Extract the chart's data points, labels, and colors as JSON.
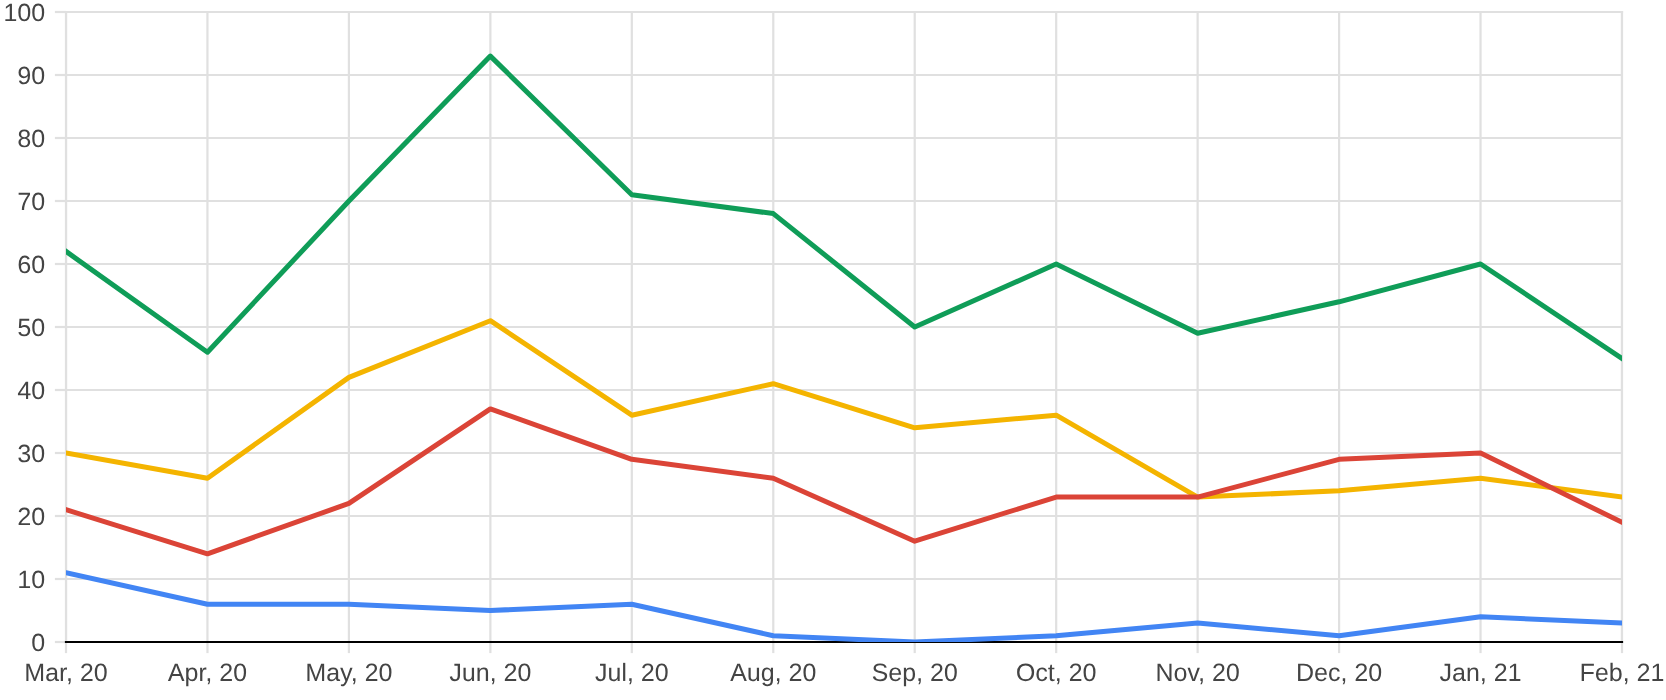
{
  "chart_data": {
    "type": "line",
    "categories": [
      "Mar, 20",
      "Apr, 20",
      "May, 20",
      "Jun, 20",
      "Jul, 20",
      "Aug, 20",
      "Sep, 20",
      "Oct, 20",
      "Nov, 20",
      "Dec, 20",
      "Jan, 21",
      "Feb, 21"
    ],
    "series": [
      {
        "color": "#0f9d58",
        "values": [
          62,
          46,
          70,
          93,
          71,
          68,
          50,
          60,
          49,
          54,
          60,
          45
        ]
      },
      {
        "color": "#f4b400",
        "values": [
          30,
          26,
          42,
          51,
          36,
          41,
          34,
          36,
          23,
          24,
          26,
          23
        ]
      },
      {
        "color": "#db4437",
        "values": [
          21,
          14,
          22,
          37,
          29,
          26,
          16,
          23,
          23,
          29,
          30,
          19
        ]
      },
      {
        "color": "#4285f4",
        "values": [
          11,
          6,
          6,
          5,
          6,
          1,
          0,
          1,
          3,
          1,
          4,
          3
        ]
      }
    ],
    "ylim": [
      0,
      100
    ],
    "yticks": [
      0,
      10,
      20,
      30,
      40,
      50,
      60,
      70,
      80,
      90,
      100
    ],
    "grid": true,
    "marker": "none",
    "line_style": "solid"
  }
}
